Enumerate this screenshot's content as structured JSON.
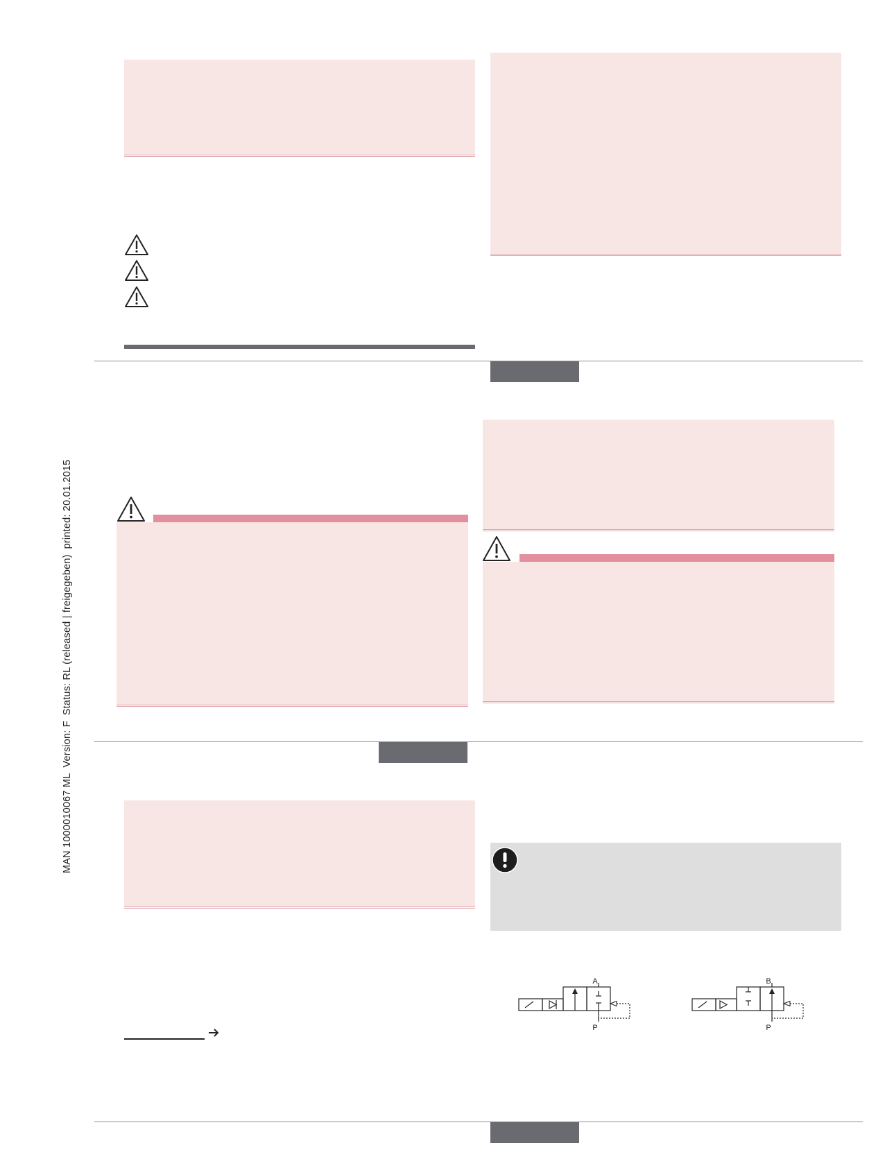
{
  "side_margin": {
    "doc_id": "MAN  1000010067  ML",
    "version": "Version: F",
    "status": "Status: RL (released | freigegeben)",
    "printed": "printed: 20.01.2015"
  },
  "schematics": {
    "left": {
      "top_port": "A",
      "bottom_port": "P"
    },
    "right": {
      "top_port": "B",
      "bottom_port": "P"
    }
  },
  "colors": {
    "note_box": "#f8e6e5",
    "warning_bar": "#e2909d",
    "section_tab": "#6a6b70",
    "info_box": "#dedede"
  },
  "icons": {
    "hazard": "warning-triangle-icon",
    "important": "exclamation-circle-icon",
    "arrow": "right-arrow-icon"
  }
}
